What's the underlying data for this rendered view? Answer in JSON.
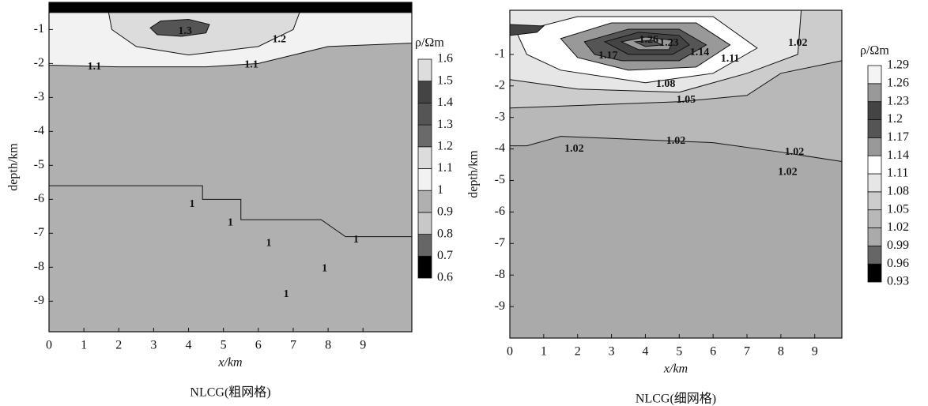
{
  "chart_data": [
    {
      "type": "contour",
      "x_label": "x/km",
      "y_label": "depth/km",
      "caption": "NLCG(粗网格)",
      "colorbar_title": "ρ/Ωm",
      "xlim": [
        0,
        10.4
      ],
      "ylim": [
        -9.9,
        -0.2
      ],
      "xticks": [
        0,
        1,
        2,
        3,
        4,
        5,
        6,
        7,
        8,
        9
      ],
      "yticks": [
        -1,
        -2,
        -3,
        -4,
        -5,
        -6,
        -7,
        -8,
        -9
      ],
      "colorbar": {
        "levels": [
          0.6,
          0.7,
          0.8,
          0.9,
          1,
          1.1,
          1.2,
          1.3,
          1.4,
          1.5,
          1.6
        ],
        "colors": [
          "#000000",
          "#666666",
          "#c8c8c8",
          "#b0b0b0",
          "#f2f2f2",
          "#dcdcdc",
          "#6a6a6a",
          "#555555",
          "#444444",
          "#dddddd"
        ]
      },
      "regions": [
        {
          "value": 0.9,
          "points": [
            [
              0,
              -0.2
            ],
            [
              10.4,
              -0.2
            ],
            [
              10.4,
              -9.9
            ],
            [
              0,
              -9.9
            ]
          ]
        },
        {
          "value": 1,
          "points": [
            [
              0,
              -0.2
            ],
            [
              10.4,
              -0.2
            ],
            [
              10.4,
              -1.4
            ],
            [
              8,
              -1.5
            ],
            [
              7,
              -1.75
            ],
            [
              6,
              -2.0
            ],
            [
              4.5,
              -2.1
            ],
            [
              2,
              -2.1
            ],
            [
              0,
              -2.05
            ]
          ]
        },
        {
          "value": 1.1,
          "points": [
            [
              1.7,
              -0.45
            ],
            [
              7.2,
              -0.45
            ],
            [
              7,
              -1.0
            ],
            [
              6,
              -1.5
            ],
            [
              4,
              -1.75
            ],
            [
              2.5,
              -1.5
            ],
            [
              1.8,
              -1.0
            ]
          ]
        },
        {
          "value": 1.3,
          "points": [
            [
              2.9,
              -0.95
            ],
            [
              3.2,
              -0.75
            ],
            [
              4.0,
              -0.7
            ],
            [
              4.6,
              -0.85
            ],
            [
              4.5,
              -1.1
            ],
            [
              3.8,
              -1.2
            ],
            [
              3.1,
              -1.15
            ]
          ]
        },
        {
          "value": 0.6,
          "points": [
            [
              0,
              -0.2
            ],
            [
              10.4,
              -0.2
            ],
            [
              10.4,
              -0.5
            ],
            [
              0,
              -0.5
            ]
          ]
        },
        {
          "value": 0.9,
          "points": [
            [
              0,
              -5.6
            ],
            [
              4.4,
              -5.6
            ],
            [
              4.4,
              -6.0
            ],
            [
              5.5,
              -6.0
            ],
            [
              5.5,
              -6.6
            ],
            [
              7.8,
              -6.6
            ],
            [
              8.5,
              -7.1
            ],
            [
              10.4,
              -7.1
            ],
            [
              10.4,
              -9.9
            ],
            [
              0,
              -9.9
            ]
          ]
        }
      ],
      "contour_labels": [
        {
          "label": "1.3",
          "x": 3.9,
          "y": -1.05
        },
        {
          "label": "1.2",
          "x": 6.6,
          "y": -1.3
        },
        {
          "label": "1.1",
          "x": 1.3,
          "y": -2.1
        },
        {
          "label": "1.1",
          "x": 5.8,
          "y": -2.05
        },
        {
          "label": "1",
          "x": 4.1,
          "y": -6.15
        },
        {
          "label": "1",
          "x": 5.2,
          "y": -6.7
        },
        {
          "label": "1",
          "x": 6.3,
          "y": -7.3
        },
        {
          "label": "1",
          "x": 8.8,
          "y": -7.2
        },
        {
          "label": "1",
          "x": 7.9,
          "y": -8.05
        },
        {
          "label": "1",
          "x": 6.8,
          "y": -8.8
        }
      ]
    },
    {
      "type": "contour",
      "x_label": "x/km",
      "y_label": "depth/km",
      "caption": "NLCG(细网格)",
      "colorbar_title": "ρ/Ωm",
      "xlim": [
        0,
        9.8
      ],
      "ylim": [
        -10,
        0.4
      ],
      "xticks": [
        0,
        1,
        2,
        3,
        4,
        5,
        6,
        7,
        8,
        9
      ],
      "yticks": [
        -1,
        -2,
        -3,
        -4,
        -5,
        -6,
        -7,
        -8,
        -9
      ],
      "colorbar": {
        "levels": [
          0.93,
          0.96,
          0.99,
          1.02,
          1.05,
          1.08,
          1.11,
          1.14,
          1.17,
          1.2,
          1.23,
          1.26,
          1.29
        ],
        "colors": [
          "#000000",
          "#666666",
          "#aaaaaa",
          "#b8b8b8",
          "#cccccc",
          "#e6e6e6",
          "#ffffff",
          "#999999",
          "#555555",
          "#444444",
          "#999999",
          "#f4f4f4"
        ]
      },
      "regions": [
        {
          "value": 0.99,
          "points": [
            [
              0,
              0.4
            ],
            [
              9.8,
              0.4
            ],
            [
              9.8,
              -10
            ],
            [
              0,
              -10
            ]
          ]
        },
        {
          "value": 1.02,
          "points": [
            [
              0,
              0.4
            ],
            [
              9.8,
              0.4
            ],
            [
              9.8,
              -4.4
            ],
            [
              8,
              -4.1
            ],
            [
              6,
              -3.8
            ],
            [
              1.5,
              -3.6
            ],
            [
              0.5,
              -3.9
            ],
            [
              0,
              -3.9
            ]
          ]
        },
        {
          "value": 1.05,
          "points": [
            [
              0,
              0.4
            ],
            [
              9.8,
              0.4
            ],
            [
              9.8,
              -1.2
            ],
            [
              8,
              -1.6
            ],
            [
              7,
              -2.3
            ],
            [
              5,
              -2.5
            ],
            [
              2.5,
              -2.6
            ],
            [
              0,
              -2.7
            ]
          ]
        },
        {
          "value": 1.08,
          "points": [
            [
              0,
              0.4
            ],
            [
              8.6,
              0.4
            ],
            [
              8.5,
              -1.0
            ],
            [
              7,
              -1.6
            ],
            [
              5,
              -2.2
            ],
            [
              2,
              -2.1
            ],
            [
              0,
              -1.8
            ]
          ]
        },
        {
          "value": 1.11,
          "points": [
            [
              0.2,
              -0.3
            ],
            [
              2,
              0.2
            ],
            [
              6,
              0.2
            ],
            [
              7.3,
              -0.8
            ],
            [
              6,
              -1.6
            ],
            [
              4,
              -1.9
            ],
            [
              1.5,
              -1.5
            ],
            [
              0.5,
              -1.0
            ]
          ]
        },
        {
          "value": 1.14,
          "points": [
            [
              1.5,
              -0.5
            ],
            [
              3,
              0
            ],
            [
              5.5,
              0
            ],
            [
              6.5,
              -0.7
            ],
            [
              5.5,
              -1.4
            ],
            [
              3.5,
              -1.5
            ],
            [
              2,
              -1.1
            ]
          ]
        },
        {
          "value": 1.17,
          "points": [
            [
              2.2,
              -0.6
            ],
            [
              3.5,
              -0.2
            ],
            [
              5,
              -0.2
            ],
            [
              5.8,
              -0.7
            ],
            [
              5,
              -1.2
            ],
            [
              3.3,
              -1.2
            ],
            [
              2.5,
              -1.0
            ]
          ]
        },
        {
          "value": 1.2,
          "points": [
            [
              2.8,
              -0.6
            ],
            [
              3.8,
              -0.3
            ],
            [
              5,
              -0.4
            ],
            [
              5.3,
              -0.7
            ],
            [
              4.8,
              -1.0
            ],
            [
              3.5,
              -1.0
            ]
          ]
        },
        {
          "value": 1.23,
          "points": [
            [
              3.3,
              -0.6
            ],
            [
              4,
              -0.45
            ],
            [
              4.8,
              -0.55
            ],
            [
              4.7,
              -0.85
            ],
            [
              3.8,
              -0.85
            ]
          ]
        },
        {
          "value": 1.17,
          "points": [
            [
              3.7,
              -0.6
            ],
            [
              4.2,
              -0.55
            ],
            [
              4.5,
              -0.7
            ],
            [
              4,
              -0.75
            ]
          ]
        },
        {
          "value": 1.2,
          "points": [
            [
              0,
              -0.05
            ],
            [
              1,
              -0.1
            ],
            [
              0.8,
              -0.3
            ],
            [
              0,
              -0.4
            ]
          ]
        }
      ],
      "contour_labels": [
        {
          "label": "1.26",
          "x": 4.1,
          "y": -0.55
        },
        {
          "label": "1.23",
          "x": 4.7,
          "y": -0.65
        },
        {
          "label": "1.17",
          "x": 2.9,
          "y": -1.05
        },
        {
          "label": "1.14",
          "x": 5.6,
          "y": -0.95
        },
        {
          "label": "1.11",
          "x": 6.5,
          "y": -1.15
        },
        {
          "label": "1.02",
          "x": 8.5,
          "y": -0.65
        },
        {
          "label": "1.08",
          "x": 4.6,
          "y": -1.95
        },
        {
          "label": "1.05",
          "x": 5.2,
          "y": -2.45
        },
        {
          "label": "1.02",
          "x": 1.9,
          "y": -4.0
        },
        {
          "label": "1.02",
          "x": 4.9,
          "y": -3.75
        },
        {
          "label": "1.02",
          "x": 8.4,
          "y": -4.1
        },
        {
          "label": "1.02",
          "x": 8.2,
          "y": -4.75
        }
      ]
    }
  ]
}
